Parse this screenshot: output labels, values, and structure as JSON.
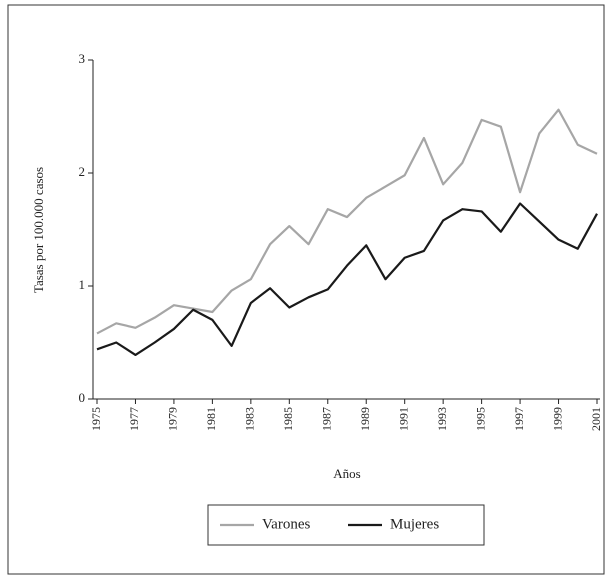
{
  "chart_data": {
    "type": "line",
    "ylabel": "Tasas por 100.000 casos",
    "xlabel": "Años",
    "x": [
      1975,
      1976,
      1977,
      1978,
      1979,
      1980,
      1981,
      1982,
      1983,
      1984,
      1985,
      1986,
      1987,
      1988,
      1989,
      1990,
      1991,
      1992,
      1993,
      1994,
      1995,
      1996,
      1997,
      1998,
      1999,
      2000,
      2001
    ],
    "series": [
      {
        "name": "Varones",
        "color": "#a6a6a6",
        "values": [
          0.58,
          0.67,
          0.63,
          0.72,
          0.83,
          0.8,
          0.77,
          0.96,
          1.06,
          1.37,
          1.53,
          1.37,
          1.68,
          1.61,
          1.78,
          1.88,
          1.98,
          2.31,
          1.9,
          2.09,
          2.47,
          2.41,
          1.83,
          2.35,
          2.56,
          2.25,
          2.17
        ]
      },
      {
        "name": "Mujeres",
        "color": "#1a1a1a",
        "values": [
          0.44,
          0.5,
          0.39,
          0.5,
          0.62,
          0.79,
          0.7,
          0.47,
          0.85,
          0.98,
          0.81,
          0.9,
          0.97,
          1.18,
          1.36,
          1.06,
          1.25,
          1.31,
          1.58,
          1.68,
          1.66,
          1.48,
          1.73,
          1.57,
          1.41,
          1.33,
          1.64
        ]
      }
    ],
    "xlim": [
      1975,
      2001
    ],
    "xticks": [
      1975,
      1977,
      1979,
      1981,
      1983,
      1985,
      1987,
      1989,
      1991,
      1993,
      1995,
      1997,
      1999,
      2001
    ],
    "ylim": [
      0,
      3
    ],
    "yticks": [
      0,
      1,
      2,
      3
    ],
    "grid": false,
    "legend": "bottom"
  }
}
